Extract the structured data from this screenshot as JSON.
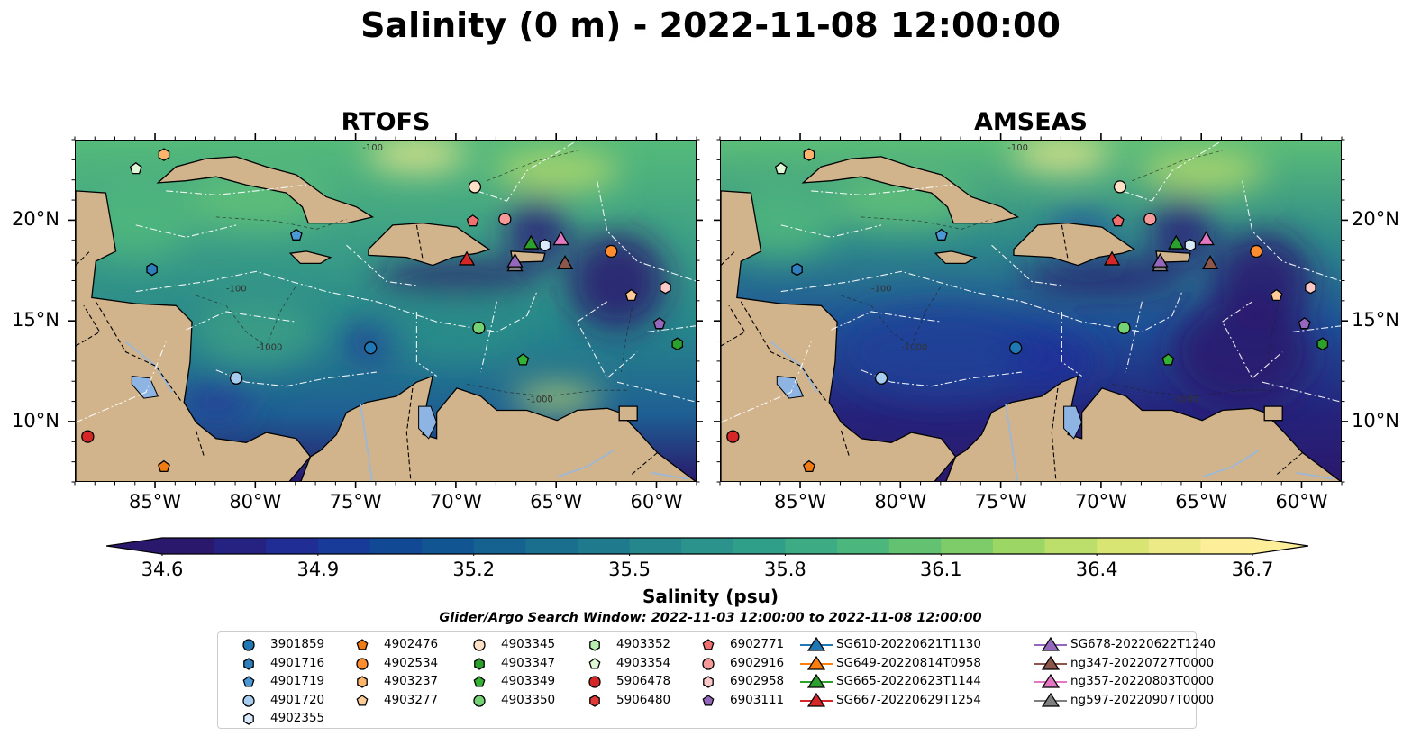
{
  "title": "Salinity (0 m) - 2022-11-08 12:00:00",
  "panels": [
    {
      "name": "rtofs",
      "title": "RTOFS"
    },
    {
      "name": "amseas",
      "title": "AMSEAS"
    }
  ],
  "map_extent": {
    "lon": [
      -89,
      -58
    ],
    "lat": [
      7,
      24
    ]
  },
  "lon_ticks": [
    "85°W",
    "80°W",
    "75°W",
    "70°W",
    "65°W",
    "60°W"
  ],
  "lon_tick_values": [
    -85,
    -80,
    -75,
    -70,
    -65,
    -60
  ],
  "lat_ticks": [
    "20°N",
    "15°N",
    "10°N"
  ],
  "lat_tick_values": [
    20,
    15,
    10
  ],
  "colorbar": {
    "label": "Salinity (psu)",
    "range": [
      34.6,
      36.7
    ],
    "ticks": [
      "34.6",
      "34.9",
      "35.2",
      "35.5",
      "35.8",
      "36.1",
      "36.4",
      "36.7"
    ],
    "tick_values": [
      34.6,
      34.9,
      35.2,
      35.5,
      35.8,
      36.1,
      36.4,
      36.7
    ],
    "extend": "both",
    "colormap": "haline",
    "stops": [
      "#2a186c",
      "#1e2f9a",
      "#0e4f94",
      "#186a8e",
      "#24858c",
      "#31a08a",
      "#4fbb79",
      "#8ed263",
      "#d5e46f",
      "#fdef9a"
    ]
  },
  "search_window": "Glider/Argo Search Window: 2022-11-03 12:00:00 to 2022-11-08 12:00:00",
  "contour_labels": [
    "-100",
    "-1000"
  ],
  "colors": {
    "land": "#d2b48c",
    "pacific_ocean": "#98b4dc",
    "rivers": "#9bb8d9"
  },
  "legend": [
    {
      "label": "3901859",
      "marker": "circle",
      "color": "#1f77b4"
    },
    {
      "label": "4901716",
      "marker": "hexagon",
      "color": "#2f7fbf"
    },
    {
      "label": "4901719",
      "marker": "pentagon",
      "color": "#4a98d6"
    },
    {
      "label": "4901720",
      "marker": "circle",
      "color": "#a6cdf0"
    },
    {
      "label": "4902355",
      "marker": "hexagon",
      "color": "#d9eafb"
    },
    {
      "label": "4902476",
      "marker": "pentagon",
      "color": "#f07b12"
    },
    {
      "label": "4902534",
      "marker": "circle",
      "color": "#ff8c2e"
    },
    {
      "label": "4903237",
      "marker": "hexagon",
      "color": "#ffb36b"
    },
    {
      "label": "4903277",
      "marker": "pentagon",
      "color": "#ffcc99"
    },
    {
      "label": "4903345",
      "marker": "circle",
      "color": "#ffe1c6"
    },
    {
      "label": "4903347",
      "marker": "hexagon",
      "color": "#2ca02c"
    },
    {
      "label": "4903349",
      "marker": "pentagon",
      "color": "#33b233"
    },
    {
      "label": "4903350",
      "marker": "circle",
      "color": "#74d274"
    },
    {
      "label": "4903352",
      "marker": "hexagon",
      "color": "#b8eeb0"
    },
    {
      "label": "4903354",
      "marker": "pentagon",
      "color": "#dff7d6"
    },
    {
      "label": "5906478",
      "marker": "circle",
      "color": "#d62728"
    },
    {
      "label": "5906480",
      "marker": "hexagon",
      "color": "#e0393a"
    },
    {
      "label": "6902771",
      "marker": "pentagon",
      "color": "#f07070"
    },
    {
      "label": "6902916",
      "marker": "circle",
      "color": "#f59999"
    },
    {
      "label": "6902958",
      "marker": "hexagon",
      "color": "#fcc9c9"
    },
    {
      "label": "6903111",
      "marker": "pentagon",
      "color": "#9467bd"
    },
    {
      "label": "SG610-20220621T1130",
      "marker": "triangle",
      "color": "#1f77b4"
    },
    {
      "label": "SG649-20220814T0958",
      "marker": "triangle",
      "color": "#ff7f0e"
    },
    {
      "label": "SG665-20220623T1144",
      "marker": "triangle",
      "color": "#2ca02c"
    },
    {
      "label": "SG667-20220629T1254",
      "marker": "triangle",
      "color": "#d62728"
    },
    {
      "label": "SG678-20220622T1240",
      "marker": "triangle",
      "color": "#9467bd"
    },
    {
      "label": "ng347-20220727T0000",
      "marker": "triangle",
      "color": "#8c564b"
    },
    {
      "label": "ng357-20220803T0000",
      "marker": "triangle",
      "color": "#e377c2"
    },
    {
      "label": "ng597-20220907T0000",
      "marker": "triangle",
      "color": "#7f7f7f"
    }
  ],
  "platforms": [
    {
      "id": "4902476",
      "lon": -84.6,
      "lat": 7.8
    },
    {
      "id": "5906478",
      "lon": -88.4,
      "lat": 9.3
    },
    {
      "id": "4901720",
      "lon": -81.0,
      "lat": 12.2
    },
    {
      "id": "3901859",
      "lon": -74.3,
      "lat": 13.7
    },
    {
      "id": "4903350",
      "lon": -68.9,
      "lat": 14.7
    },
    {
      "id": "4903349",
      "lon": -66.7,
      "lat": 13.1
    },
    {
      "id": "4901716",
      "lon": -85.2,
      "lat": 17.6
    },
    {
      "id": "4901719",
      "lon": -78.0,
      "lat": 19.3
    },
    {
      "id": "6902771",
      "lon": -69.2,
      "lat": 20.0
    },
    {
      "id": "6902916",
      "lon": -67.6,
      "lat": 20.1
    },
    {
      "id": "4903345",
      "lon": -69.1,
      "lat": 21.7
    },
    {
      "id": "4903237",
      "lon": -84.6,
      "lat": 23.3
    },
    {
      "id": "4903354",
      "lon": -86.0,
      "lat": 22.6
    },
    {
      "id": "4902534",
      "lon": -62.3,
      "lat": 18.5
    },
    {
      "id": "6902958",
      "lon": -59.6,
      "lat": 16.7
    },
    {
      "id": "6903111",
      "lon": -59.9,
      "lat": 14.9
    },
    {
      "id": "4903347",
      "lon": -59.0,
      "lat": 13.9
    },
    {
      "id": "4903277",
      "lon": -61.3,
      "lat": 16.3
    },
    {
      "id": "4902355",
      "lon": -65.6,
      "lat": 18.8
    },
    {
      "id": "SG665-20220623T1144",
      "lon": -66.3,
      "lat": 18.9
    },
    {
      "id": "SG667-20220629T1254",
      "lon": -69.5,
      "lat": 18.1
    },
    {
      "id": "ng357-20220803T0000",
      "lon": -64.8,
      "lat": 19.1
    },
    {
      "id": "ng597-20220907T0000",
      "lon": -67.1,
      "lat": 17.8
    },
    {
      "id": "SG678-20220622T1240",
      "lon": -67.1,
      "lat": 18.0
    },
    {
      "id": "ng347-20220727T0000",
      "lon": -64.6,
      "lat": 17.9
    }
  ]
}
